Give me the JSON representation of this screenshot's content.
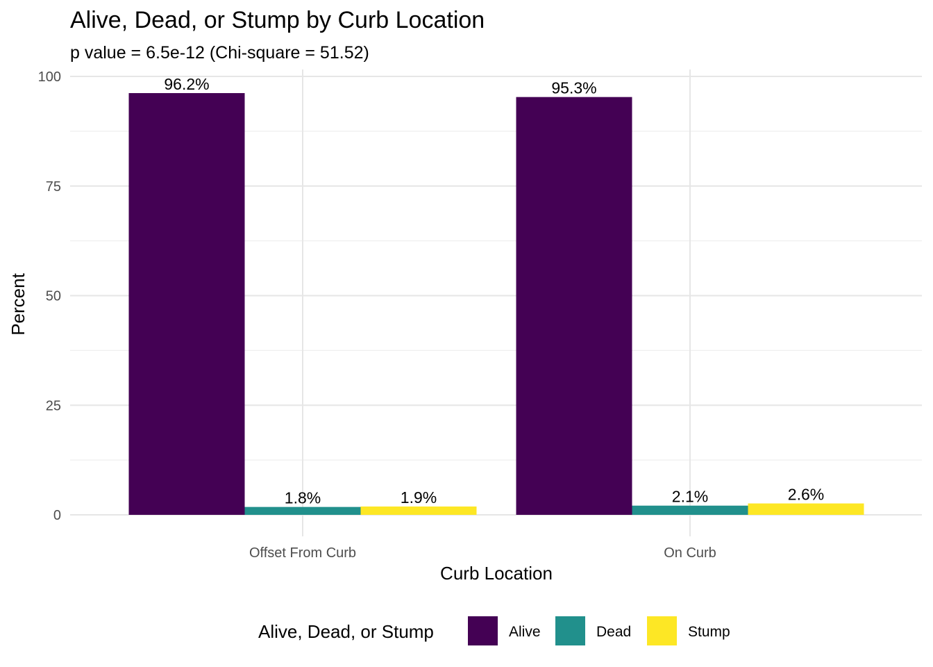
{
  "chart_data": {
    "type": "bar",
    "title": "Alive, Dead, or Stump by Curb Location",
    "subtitle": "p value = 6.5e-12 (Chi-square = 51.52)",
    "xlabel": "Curb Location",
    "ylabel": "Percent",
    "categories": [
      "Offset From Curb",
      "On Curb"
    ],
    "series": [
      {
        "name": "Alive",
        "color": "#440154",
        "values": [
          96.2,
          95.3
        ],
        "labels": [
          "96.2%",
          "95.3%"
        ]
      },
      {
        "name": "Dead",
        "color": "#21908C",
        "values": [
          1.8,
          2.1
        ],
        "labels": [
          "1.8%",
          "2.1%"
        ]
      },
      {
        "name": "Stump",
        "color": "#FDE725",
        "values": [
          1.9,
          2.6
        ],
        "labels": [
          "1.9%",
          "2.6%"
        ]
      }
    ],
    "ylim": [
      0,
      100
    ],
    "yticks": [
      0,
      25,
      50,
      75,
      100
    ],
    "grid": true,
    "legend": {
      "title": "Alive, Dead, or Stump",
      "position": "bottom"
    }
  }
}
